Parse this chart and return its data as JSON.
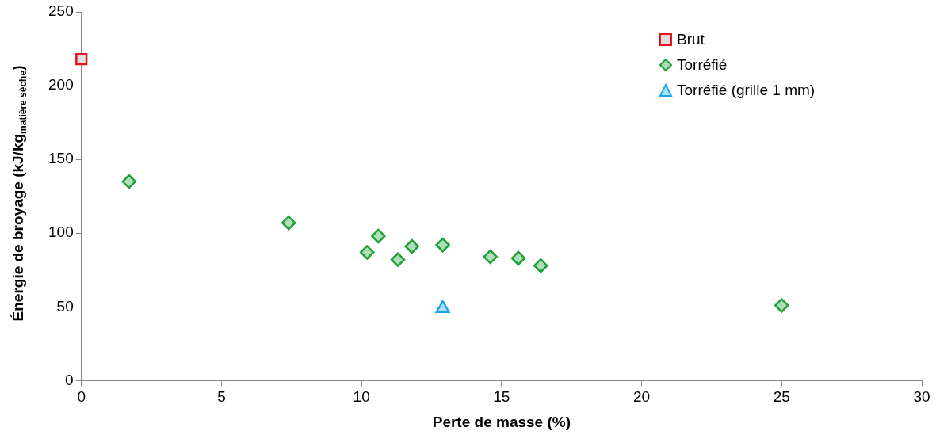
{
  "chart_data": {
    "type": "scatter",
    "xlabel": "Perte de masse (%)",
    "ylabel": "Énergie de broyage (kJ/kg$_{matière sèche}$)",
    "xlim": [
      0,
      30
    ],
    "xticks": [
      0,
      5,
      10,
      15,
      20,
      25,
      30
    ],
    "ylim": [
      0,
      250
    ],
    "yticks": [
      0,
      50,
      100,
      150,
      200,
      250
    ],
    "grid": false,
    "legend": "top right",
    "series": [
      {
        "name": "Brut",
        "color": "#e8141b",
        "marker": "square",
        "x": [
          0
        ],
        "values": [
          218
        ]
      },
      {
        "name": "Torréfié",
        "color": "#1fa038",
        "marker": "diamond",
        "x": [
          1.7,
          7.4,
          10.2,
          10.6,
          11.3,
          11.8,
          12.9,
          14.6,
          15.6,
          16.4,
          25.0
        ],
        "values": [
          135,
          107,
          87,
          98,
          82,
          91,
          92,
          84,
          83,
          78,
          51
        ]
      },
      {
        "name": "Torréfié (grille 1 mm)",
        "color": "#1aa7e8",
        "marker": "triangle",
        "x": [
          12.9
        ],
        "values": [
          49
        ]
      }
    ]
  }
}
